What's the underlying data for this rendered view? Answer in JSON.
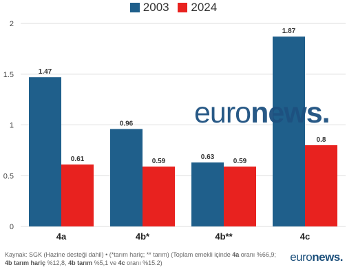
{
  "legend": [
    {
      "label": "2003",
      "color": "#1f5f8b"
    },
    {
      "label": "2024",
      "color": "#e8221f"
    }
  ],
  "chart_data": {
    "type": "bar",
    "categories": [
      "4a",
      "4b*",
      "4b**",
      "4c"
    ],
    "series": [
      {
        "name": "2003",
        "values": [
          1.47,
          0.96,
          0.63,
          1.87
        ],
        "labels": [
          "1.47",
          "0.96",
          "0.63",
          "1.87"
        ],
        "color": "#1f5f8b"
      },
      {
        "name": "2024",
        "values": [
          0.61,
          0.59,
          0.59,
          0.8
        ],
        "labels": [
          "0.61",
          "0.59",
          "0.59",
          "0.8"
        ],
        "color": "#e8221f"
      }
    ],
    "yticks": [
      "0",
      "0.5",
      "1",
      "1.5",
      "2"
    ],
    "ylim": [
      0,
      2
    ],
    "grid": true,
    "legend_position": "top-center"
  },
  "watermark": {
    "part1": "euro",
    "part2": "news."
  },
  "source": {
    "t1": "Kaynak: SGK (Hazine desteği dahil) • (*tarım hariç; ** tarım) (Toplam emekli içinde ",
    "b1": "4a",
    "t2": " oranı %66,9; ",
    "b2": "4b tarım hariç",
    "t3": " %12,8, ",
    "b3": "4b tarım",
    "t4": " %5,1 ve ",
    "b4": "4c",
    "t5": " oranı %15.2)"
  },
  "logo": {
    "part1": "euro",
    "part2": "news."
  }
}
